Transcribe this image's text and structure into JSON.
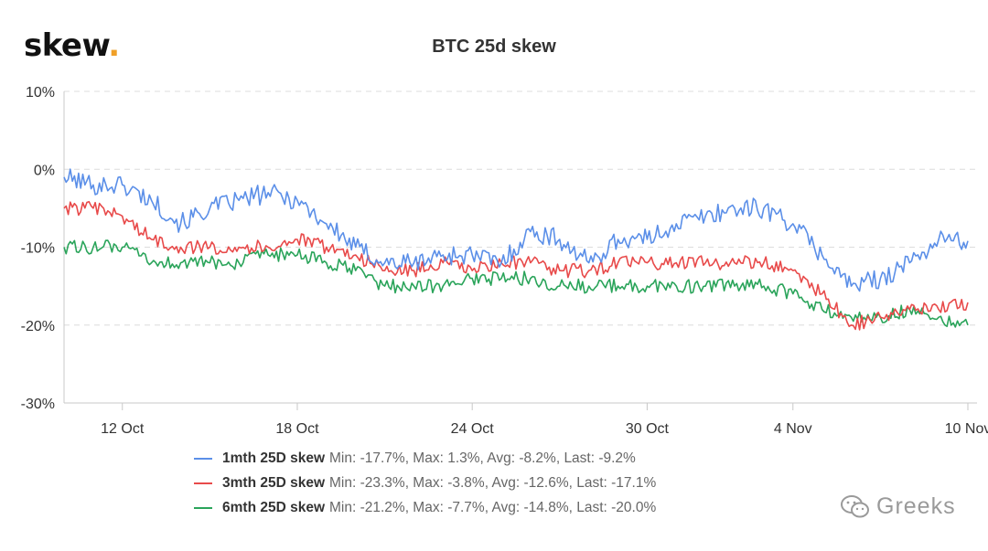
{
  "brand": {
    "name": "skew",
    "dot": "."
  },
  "watermark": {
    "text": "Greeks",
    "icon": "wechat-icon"
  },
  "chart_data": {
    "type": "line",
    "title": "BTC 25d skew",
    "xlabel": "",
    "ylabel": "",
    "x_ticks": [
      "12 Oct",
      "18 Oct",
      "24 Oct",
      "30 Oct",
      "4 Nov",
      "10 Nov"
    ],
    "y_ticks": [
      "10%",
      "0%",
      "-10%",
      "-20%",
      "-30%"
    ],
    "ylim": [
      -30,
      10
    ],
    "x_range": [
      "2020-10-10",
      "2020-11-10"
    ],
    "grid": "horizontal dashed",
    "legend_position": "bottom",
    "series": [
      {
        "name": "1mth 25D skew",
        "color": "#5b8fe8",
        "stats": "Min: -17.7%, Max: 1.3%, Avg: -8.2%, Last: -9.2%",
        "x": [
          "2020-10-10",
          "2020-10-11",
          "2020-10-12",
          "2020-10-13",
          "2020-10-14",
          "2020-10-15",
          "2020-10-16",
          "2020-10-17",
          "2020-10-18",
          "2020-10-19",
          "2020-10-20",
          "2020-10-21",
          "2020-10-22",
          "2020-10-23",
          "2020-10-24",
          "2020-10-25",
          "2020-10-26",
          "2020-10-27",
          "2020-10-28",
          "2020-10-29",
          "2020-10-30",
          "2020-10-31",
          "2020-11-01",
          "2020-11-02",
          "2020-11-03",
          "2020-11-04",
          "2020-11-05",
          "2020-11-06",
          "2020-11-07",
          "2020-11-08",
          "2020-11-09",
          "2020-11-10"
        ],
        "values": [
          -1,
          -2,
          -2,
          -4,
          -7,
          -5,
          -4,
          -3,
          -4,
          -7,
          -10,
          -12,
          -12,
          -11,
          -11,
          -12,
          -8,
          -9,
          -12,
          -9,
          -9,
          -7,
          -6,
          -5,
          -5,
          -7,
          -11,
          -15,
          -14,
          -12,
          -9,
          -9.2
        ]
      },
      {
        "name": "3mth 25D skew",
        "color": "#e84a4a",
        "stats": "Min: -23.3%, Max: -3.8%, Avg: -12.6%, Last: -17.1%",
        "x": [
          "2020-10-10",
          "2020-10-11",
          "2020-10-12",
          "2020-10-13",
          "2020-10-14",
          "2020-10-15",
          "2020-10-16",
          "2020-10-17",
          "2020-10-18",
          "2020-10-19",
          "2020-10-20",
          "2020-10-21",
          "2020-10-22",
          "2020-10-23",
          "2020-10-24",
          "2020-10-25",
          "2020-10-26",
          "2020-10-27",
          "2020-10-28",
          "2020-10-29",
          "2020-10-30",
          "2020-10-31",
          "2020-11-01",
          "2020-11-02",
          "2020-11-03",
          "2020-11-04",
          "2020-11-05",
          "2020-11-06",
          "2020-11-07",
          "2020-11-08",
          "2020-11-09",
          "2020-11-10"
        ],
        "values": [
          -5,
          -5,
          -6,
          -9,
          -10,
          -10,
          -10,
          -10,
          -9,
          -10,
          -11,
          -13,
          -13,
          -12,
          -13,
          -12,
          -12,
          -13,
          -13,
          -12,
          -12,
          -12,
          -12,
          -12,
          -12,
          -13,
          -16,
          -20,
          -19,
          -18,
          -18,
          -17.1
        ]
      },
      {
        "name": "6mth 25D skew",
        "color": "#2aa45a",
        "stats": "Min: -21.2%, Max: -7.7%, Avg: -14.8%, Last: -20.0%",
        "x": [
          "2020-10-10",
          "2020-10-11",
          "2020-10-12",
          "2020-10-13",
          "2020-10-14",
          "2020-10-15",
          "2020-10-16",
          "2020-10-17",
          "2020-10-18",
          "2020-10-19",
          "2020-10-20",
          "2020-10-21",
          "2020-10-22",
          "2020-10-23",
          "2020-10-24",
          "2020-10-25",
          "2020-10-26",
          "2020-10-27",
          "2020-10-28",
          "2020-10-29",
          "2020-10-30",
          "2020-10-31",
          "2020-11-01",
          "2020-11-02",
          "2020-11-03",
          "2020-11-04",
          "2020-11-05",
          "2020-11-06",
          "2020-11-07",
          "2020-11-08",
          "2020-11-09",
          "2020-11-10"
        ],
        "values": [
          -10,
          -10,
          -10,
          -12,
          -12,
          -12,
          -12,
          -11,
          -11,
          -12,
          -13,
          -15,
          -15,
          -15,
          -14,
          -14,
          -14,
          -15,
          -15,
          -15,
          -15,
          -15,
          -15,
          -15,
          -15,
          -16,
          -18,
          -19,
          -19,
          -18,
          -19,
          -20.0
        ]
      }
    ]
  }
}
